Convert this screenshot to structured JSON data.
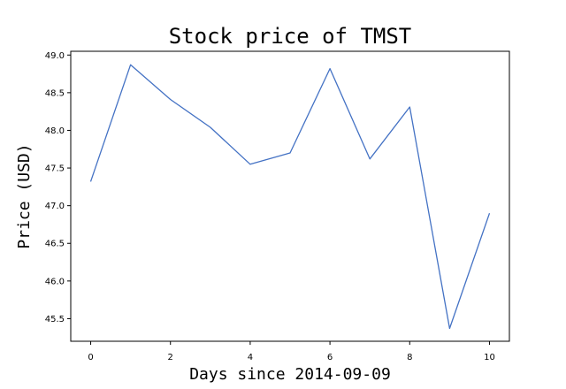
{
  "chart_data": {
    "type": "line",
    "title": "Stock price of TMST",
    "xlabel": "Days since 2014-09-09",
    "ylabel": "Price (USD)",
    "xlim": [
      -0.5,
      10.5
    ],
    "ylim": [
      45.2,
      49.05
    ],
    "x_ticks": [
      0,
      2,
      4,
      6,
      8,
      10
    ],
    "y_ticks": [
      45.5,
      46.0,
      46.5,
      47.0,
      47.5,
      48.0,
      48.5,
      49.0
    ],
    "y_tick_labels": [
      "45.5",
      "46.0",
      "46.5",
      "47.0",
      "47.5",
      "48.0",
      "48.5",
      "49.0"
    ],
    "grid": false,
    "series": [
      {
        "x": [
          0,
          1,
          2,
          3,
          4,
          5,
          6,
          7,
          8,
          9,
          10
        ],
        "values": [
          47.32,
          48.87,
          48.41,
          48.04,
          47.55,
          47.7,
          48.82,
          47.62,
          48.31,
          45.37,
          46.9
        ],
        "color": "#4472c4"
      }
    ]
  }
}
